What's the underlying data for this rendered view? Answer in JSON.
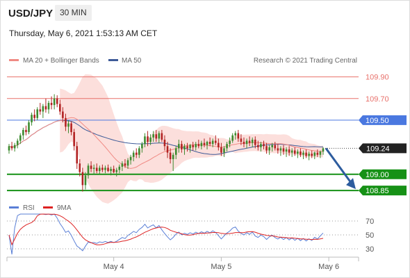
{
  "header": {
    "symbol": "USD/JPY",
    "timeframe": "30 MIN",
    "timestamp": "Thursday, May 6, 2021 1:53:13 AM CET"
  },
  "legend": {
    "ma20": "MA 20 + Bollinger Bands",
    "ma50": "MA 50",
    "credit": "Research © 2021 Trading Central",
    "rsi": "RSI",
    "ma9": "9MA"
  },
  "colors": {
    "ma20": "#f08a84",
    "ma50": "#3d5a98",
    "band_fill": "#fbd7d3",
    "resistance": "#e8706a",
    "pivot": "#4a78e0",
    "support": "#169116",
    "arrow": "#2d5c9e",
    "candle_up": "#3c8a2e",
    "candle_down": "#b22222",
    "rsi": "#5a7fd6",
    "rsi_ma": "#dd2222"
  },
  "chart_data": [
    {
      "type": "candlestick",
      "ylim": [
        108.78,
        110.02
      ],
      "levels": [
        {
          "label": "109.90",
          "value": 109.9,
          "kind": "resistance"
        },
        {
          "label": "109.70",
          "value": 109.7,
          "kind": "resistance"
        },
        {
          "label": "109.50",
          "value": 109.5,
          "kind": "pivot"
        },
        {
          "label": "109.24",
          "value": 109.24,
          "kind": "last"
        },
        {
          "label": "109.00",
          "value": 109.0,
          "kind": "support"
        },
        {
          "label": "108.85",
          "value": 108.85,
          "kind": "support"
        }
      ],
      "x_ticks": [
        "May 4",
        "May 5",
        "May 6"
      ],
      "x_tick_index": [
        37,
        75,
        113
      ],
      "ohlc": [
        [
          109.22,
          109.28,
          109.19,
          109.26
        ],
        [
          109.26,
          109.3,
          109.22,
          109.24
        ],
        [
          109.24,
          109.29,
          109.21,
          109.27
        ],
        [
          109.27,
          109.33,
          109.24,
          109.31
        ],
        [
          109.31,
          109.38,
          109.28,
          109.36
        ],
        [
          109.36,
          109.43,
          109.32,
          109.41
        ],
        [
          109.41,
          109.45,
          109.36,
          109.39
        ],
        [
          109.39,
          109.5,
          109.37,
          109.48
        ],
        [
          109.48,
          109.57,
          109.45,
          109.55
        ],
        [
          109.55,
          109.6,
          109.49,
          109.52
        ],
        [
          109.52,
          109.62,
          109.5,
          109.6
        ],
        [
          109.6,
          109.66,
          109.55,
          109.58
        ],
        [
          109.58,
          109.65,
          109.52,
          109.63
        ],
        [
          109.63,
          109.7,
          109.57,
          109.6
        ],
        [
          109.6,
          109.68,
          109.56,
          109.66
        ],
        [
          109.66,
          109.72,
          109.6,
          109.64
        ],
        [
          109.64,
          109.74,
          109.6,
          109.7
        ],
        [
          109.7,
          109.73,
          109.62,
          109.65
        ],
        [
          109.65,
          109.69,
          109.55,
          109.58
        ],
        [
          109.58,
          109.62,
          109.48,
          109.52
        ],
        [
          109.52,
          109.56,
          109.4,
          109.44
        ],
        [
          109.44,
          109.5,
          109.38,
          109.47
        ],
        [
          109.47,
          109.49,
          109.36,
          109.39
        ],
        [
          109.39,
          109.42,
          109.22,
          109.26
        ],
        [
          109.26,
          109.3,
          109.05,
          109.1
        ],
        [
          109.1,
          109.14,
          108.98,
          109.02
        ],
        [
          109.02,
          109.06,
          108.84,
          108.9
        ],
        [
          108.9,
          109.02,
          108.86,
          108.99
        ],
        [
          108.99,
          109.1,
          108.96,
          109.08
        ],
        [
          109.08,
          109.12,
          109.02,
          109.05
        ],
        [
          109.05,
          109.09,
          109.0,
          109.06
        ],
        [
          109.06,
          109.1,
          109.01,
          109.03
        ],
        [
          109.03,
          109.08,
          109.0,
          109.06
        ],
        [
          109.06,
          109.09,
          109.02,
          109.04
        ],
        [
          109.04,
          109.08,
          109.01,
          109.06
        ],
        [
          109.06,
          109.09,
          109.02,
          109.03
        ],
        [
          109.03,
          109.07,
          108.99,
          109.05
        ],
        [
          109.05,
          109.08,
          109.01,
          109.02
        ],
        [
          109.02,
          109.06,
          108.98,
          109.04
        ],
        [
          109.04,
          109.09,
          109.01,
          109.07
        ],
        [
          109.07,
          109.12,
          109.03,
          109.1
        ],
        [
          109.1,
          109.14,
          109.06,
          109.08
        ],
        [
          109.08,
          109.15,
          109.05,
          109.13
        ],
        [
          109.13,
          109.18,
          109.09,
          109.16
        ],
        [
          109.16,
          109.22,
          109.12,
          109.2
        ],
        [
          109.2,
          109.24,
          109.15,
          109.18
        ],
        [
          109.18,
          109.26,
          109.15,
          109.24
        ],
        [
          109.24,
          109.3,
          109.2,
          109.28
        ],
        [
          109.28,
          109.38,
          109.25,
          109.35
        ],
        [
          109.35,
          109.4,
          109.26,
          109.3
        ],
        [
          109.3,
          109.37,
          109.27,
          109.34
        ],
        [
          109.34,
          109.4,
          109.3,
          109.37
        ],
        [
          109.37,
          109.41,
          109.3,
          109.33
        ],
        [
          109.33,
          109.4,
          109.29,
          109.38
        ],
        [
          109.38,
          109.41,
          109.3,
          109.32
        ],
        [
          109.32,
          109.36,
          109.22,
          109.26
        ],
        [
          109.26,
          109.3,
          109.15,
          109.2
        ],
        [
          109.2,
          109.24,
          109.1,
          109.14
        ],
        [
          109.14,
          109.2,
          109.03,
          109.18
        ],
        [
          109.18,
          109.26,
          109.14,
          109.24
        ],
        [
          109.24,
          109.32,
          109.2,
          109.28
        ],
        [
          109.28,
          109.31,
          109.2,
          109.23
        ],
        [
          109.23,
          109.28,
          109.18,
          109.26
        ],
        [
          109.26,
          109.29,
          109.21,
          109.24
        ],
        [
          109.24,
          109.28,
          109.2,
          109.27
        ],
        [
          109.27,
          109.3,
          109.22,
          109.25
        ],
        [
          109.25,
          109.3,
          109.22,
          109.28
        ],
        [
          109.28,
          109.32,
          109.24,
          109.26
        ],
        [
          109.26,
          109.31,
          109.23,
          109.29
        ],
        [
          109.29,
          109.33,
          109.25,
          109.27
        ],
        [
          109.27,
          109.31,
          109.23,
          109.3
        ],
        [
          109.3,
          109.34,
          109.26,
          109.28
        ],
        [
          109.28,
          109.33,
          109.25,
          109.31
        ],
        [
          109.31,
          109.36,
          109.27,
          109.29
        ],
        [
          109.29,
          109.33,
          109.22,
          109.25
        ],
        [
          109.25,
          109.29,
          109.17,
          109.2
        ],
        [
          109.2,
          109.26,
          109.16,
          109.24
        ],
        [
          109.24,
          109.3,
          109.21,
          109.28
        ],
        [
          109.28,
          109.34,
          109.25,
          109.31
        ],
        [
          109.31,
          109.38,
          109.29,
          109.36
        ],
        [
          109.36,
          109.4,
          109.32,
          109.38
        ],
        [
          109.38,
          109.41,
          109.3,
          109.33
        ],
        [
          109.33,
          109.37,
          109.27,
          109.3
        ],
        [
          109.3,
          109.34,
          109.25,
          109.28
        ],
        [
          109.28,
          109.33,
          109.24,
          109.31
        ],
        [
          109.31,
          109.35,
          109.26,
          109.29
        ],
        [
          109.29,
          109.34,
          109.25,
          109.32
        ],
        [
          109.32,
          109.35,
          109.24,
          109.27
        ],
        [
          109.27,
          109.31,
          109.22,
          109.25
        ],
        [
          109.25,
          109.3,
          109.21,
          109.28
        ],
        [
          109.28,
          109.31,
          109.23,
          109.26
        ],
        [
          109.26,
          109.29,
          109.19,
          109.22
        ],
        [
          109.22,
          109.27,
          109.18,
          109.25
        ],
        [
          109.25,
          109.29,
          109.21,
          109.27
        ],
        [
          109.27,
          109.3,
          109.22,
          109.24
        ],
        [
          109.24,
          109.28,
          109.19,
          109.22
        ],
        [
          109.22,
          109.26,
          109.17,
          109.24
        ],
        [
          109.24,
          109.27,
          109.18,
          109.21
        ],
        [
          109.21,
          109.25,
          109.16,
          109.23
        ],
        [
          109.23,
          109.26,
          109.17,
          109.2
        ],
        [
          109.2,
          109.24,
          109.16,
          109.22
        ],
        [
          109.22,
          109.25,
          109.17,
          109.19
        ],
        [
          109.19,
          109.23,
          109.15,
          109.21
        ],
        [
          109.21,
          109.24,
          109.16,
          109.18
        ],
        [
          109.18,
          109.22,
          109.14,
          109.2
        ],
        [
          109.2,
          109.23,
          109.15,
          109.17
        ],
        [
          109.17,
          109.21,
          109.13,
          109.19
        ],
        [
          109.19,
          109.22,
          109.15,
          109.17
        ],
        [
          109.17,
          109.21,
          109.14,
          109.2
        ],
        [
          109.2,
          109.23,
          109.16,
          109.18
        ],
        [
          109.18,
          109.22,
          109.15,
          109.21
        ],
        [
          109.21,
          109.25,
          109.18,
          109.24
        ]
      ]
    },
    {
      "type": "line",
      "series": [
        {
          "name": "RSI"
        },
        {
          "name": "9MA"
        }
      ],
      "ylim": [
        20,
        80
      ],
      "y_ticks": [
        70,
        50,
        30
      ]
    }
  ]
}
